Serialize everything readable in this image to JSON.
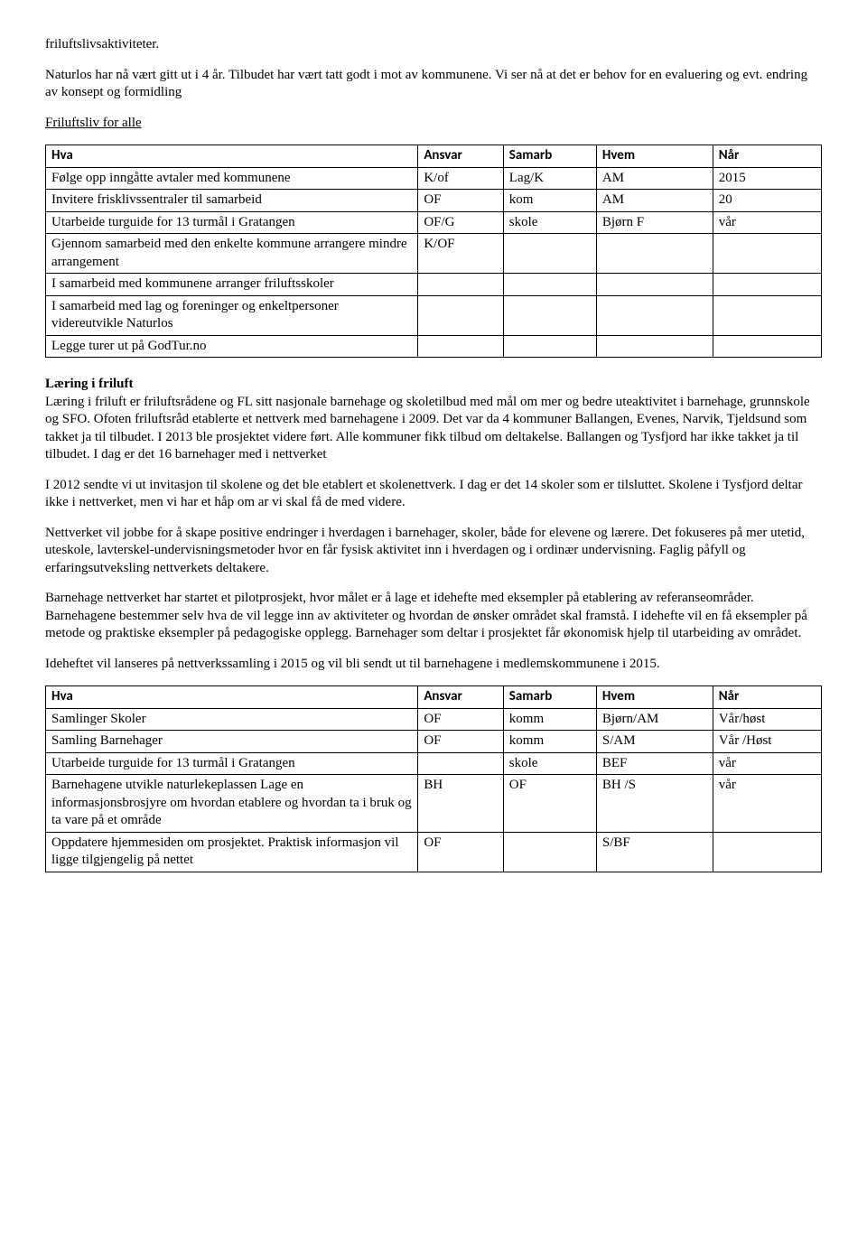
{
  "intro": {
    "p1": "friluftslivsaktiviteter.",
    "p2": "Naturlos har nå vært gitt ut i 4 år. Tilbudet har vært tatt godt i mot av kommunene. Vi ser nå at det er behov for en evaluering og evt. endring av konsept og formidling",
    "heading": "Friluftsliv for alle"
  },
  "table1": {
    "headers": [
      "Hva",
      "Ansvar",
      "Samarb",
      "Hvem",
      "Når"
    ],
    "rows": [
      [
        "Følge opp inngåtte avtaler med kommunene",
        "K/of",
        "Lag/K",
        "AM",
        "2015"
      ],
      [
        "Invitere frisklivssentraler til samarbeid",
        "OF",
        "kom",
        "AM",
        "20"
      ],
      [
        "Utarbeide turguide for 13 turmål i Gratangen",
        "OF/G",
        "skole",
        "Bjørn F",
        "vår"
      ],
      [
        "Gjennom samarbeid med den enkelte kommune arrangere mindre arrangement",
        "K/OF",
        "",
        "",
        ""
      ],
      [
        "I samarbeid med kommunene arranger friluftsskoler",
        "",
        "",
        "",
        ""
      ],
      [
        "I samarbeid med lag og foreninger og enkeltpersoner videreutvikle Naturlos",
        "",
        "",
        "",
        ""
      ],
      [
        "Legge turer ut på GodTur.no",
        "",
        "",
        "",
        ""
      ]
    ],
    "col_widths": [
      "48%",
      "11%",
      "12%",
      "15%",
      "14%"
    ]
  },
  "mid": {
    "heading": "Læring i friluft",
    "p1": "Læring i friluft er friluftsrådene og FL sitt nasjonale barnehage og skoletilbud med mål om mer og bedre uteaktivitet i barnehage, grunnskole og SFO. Ofoten friluftsråd etablerte et nettverk med barnehagene i 2009. Det var da 4 kommuner Ballangen, Evenes, Narvik, Tjeldsund som takket ja til tilbudet. I 2013 ble prosjektet videre ført. Alle kommuner fikk  tilbud om deltakelse. Ballangen og Tysfjord har ikke takket ja til tilbudet. I dag er det 16 barnehager med i nettverket",
    "p2": "I 2012 sendte vi ut invitasjon til skolene og det ble etablert et skolenettverk. I dag er det 14 skoler som er tilsluttet. Skolene i Tysfjord deltar ikke i nettverket, men vi har et håp om ar vi skal få de med videre.",
    "p3": "Nettverket vil jobbe for å skape positive endringer i hverdagen i barnehager, skoler, både for elevene og lærere. Det fokuseres på mer utetid, uteskole, lavterskel-undervisningsmetoder hvor en får fysisk aktivitet inn i hverdagen og i ordinær undervisning. Faglig påfyll og erfaringsutveksling nettverkets deltakere.",
    "p4": "Barnehage nettverket har startet et pilotprosjekt, hvor målet er å lage et idehefte med eksempler på etablering av referanseområder. Barnehagene bestemmer selv hva de vil legge inn av aktiviteter og hvordan de ønsker området skal framstå. I idehefte vil en få eksempler på metode og praktiske eksempler på pedagogiske opplegg.  Barnehager som deltar i prosjektet får økonomisk hjelp til utarbeiding av området.",
    "p5": "Ideheftet vil lanseres på nettverkssamling i 2015 og vil bli sendt ut til barnehagene i medlemskommunene i 2015."
  },
  "table2": {
    "headers": [
      "Hva",
      "Ansvar",
      "Samarb",
      "Hvem",
      "Når"
    ],
    "rows": [
      [
        "Samlinger  Skoler",
        "OF",
        "komm",
        "Bjørn/AM",
        "Vår/høst"
      ],
      [
        "Samling Barnehager",
        "OF",
        "komm",
        "S/AM",
        "Vår /Høst"
      ],
      [
        "Utarbeide turguide for 13 turmål i Gratangen",
        "",
        "skole",
        "BEF",
        "vår"
      ],
      [
        "Barnehagene utvikle naturlekeplassen Lage en informasjonsbrosjyre om hvordan etablere og hvordan ta i bruk og ta vare på et område",
        "BH",
        "OF",
        "BH /S",
        "vår"
      ],
      [
        "Oppdatere hjemmesiden om prosjektet. Praktisk informasjon vil ligge tilgjengelig på nettet",
        "OF",
        "",
        "S/BF",
        ""
      ]
    ],
    "col_widths": [
      "48%",
      "11%",
      "12%",
      "15%",
      "14%"
    ]
  }
}
